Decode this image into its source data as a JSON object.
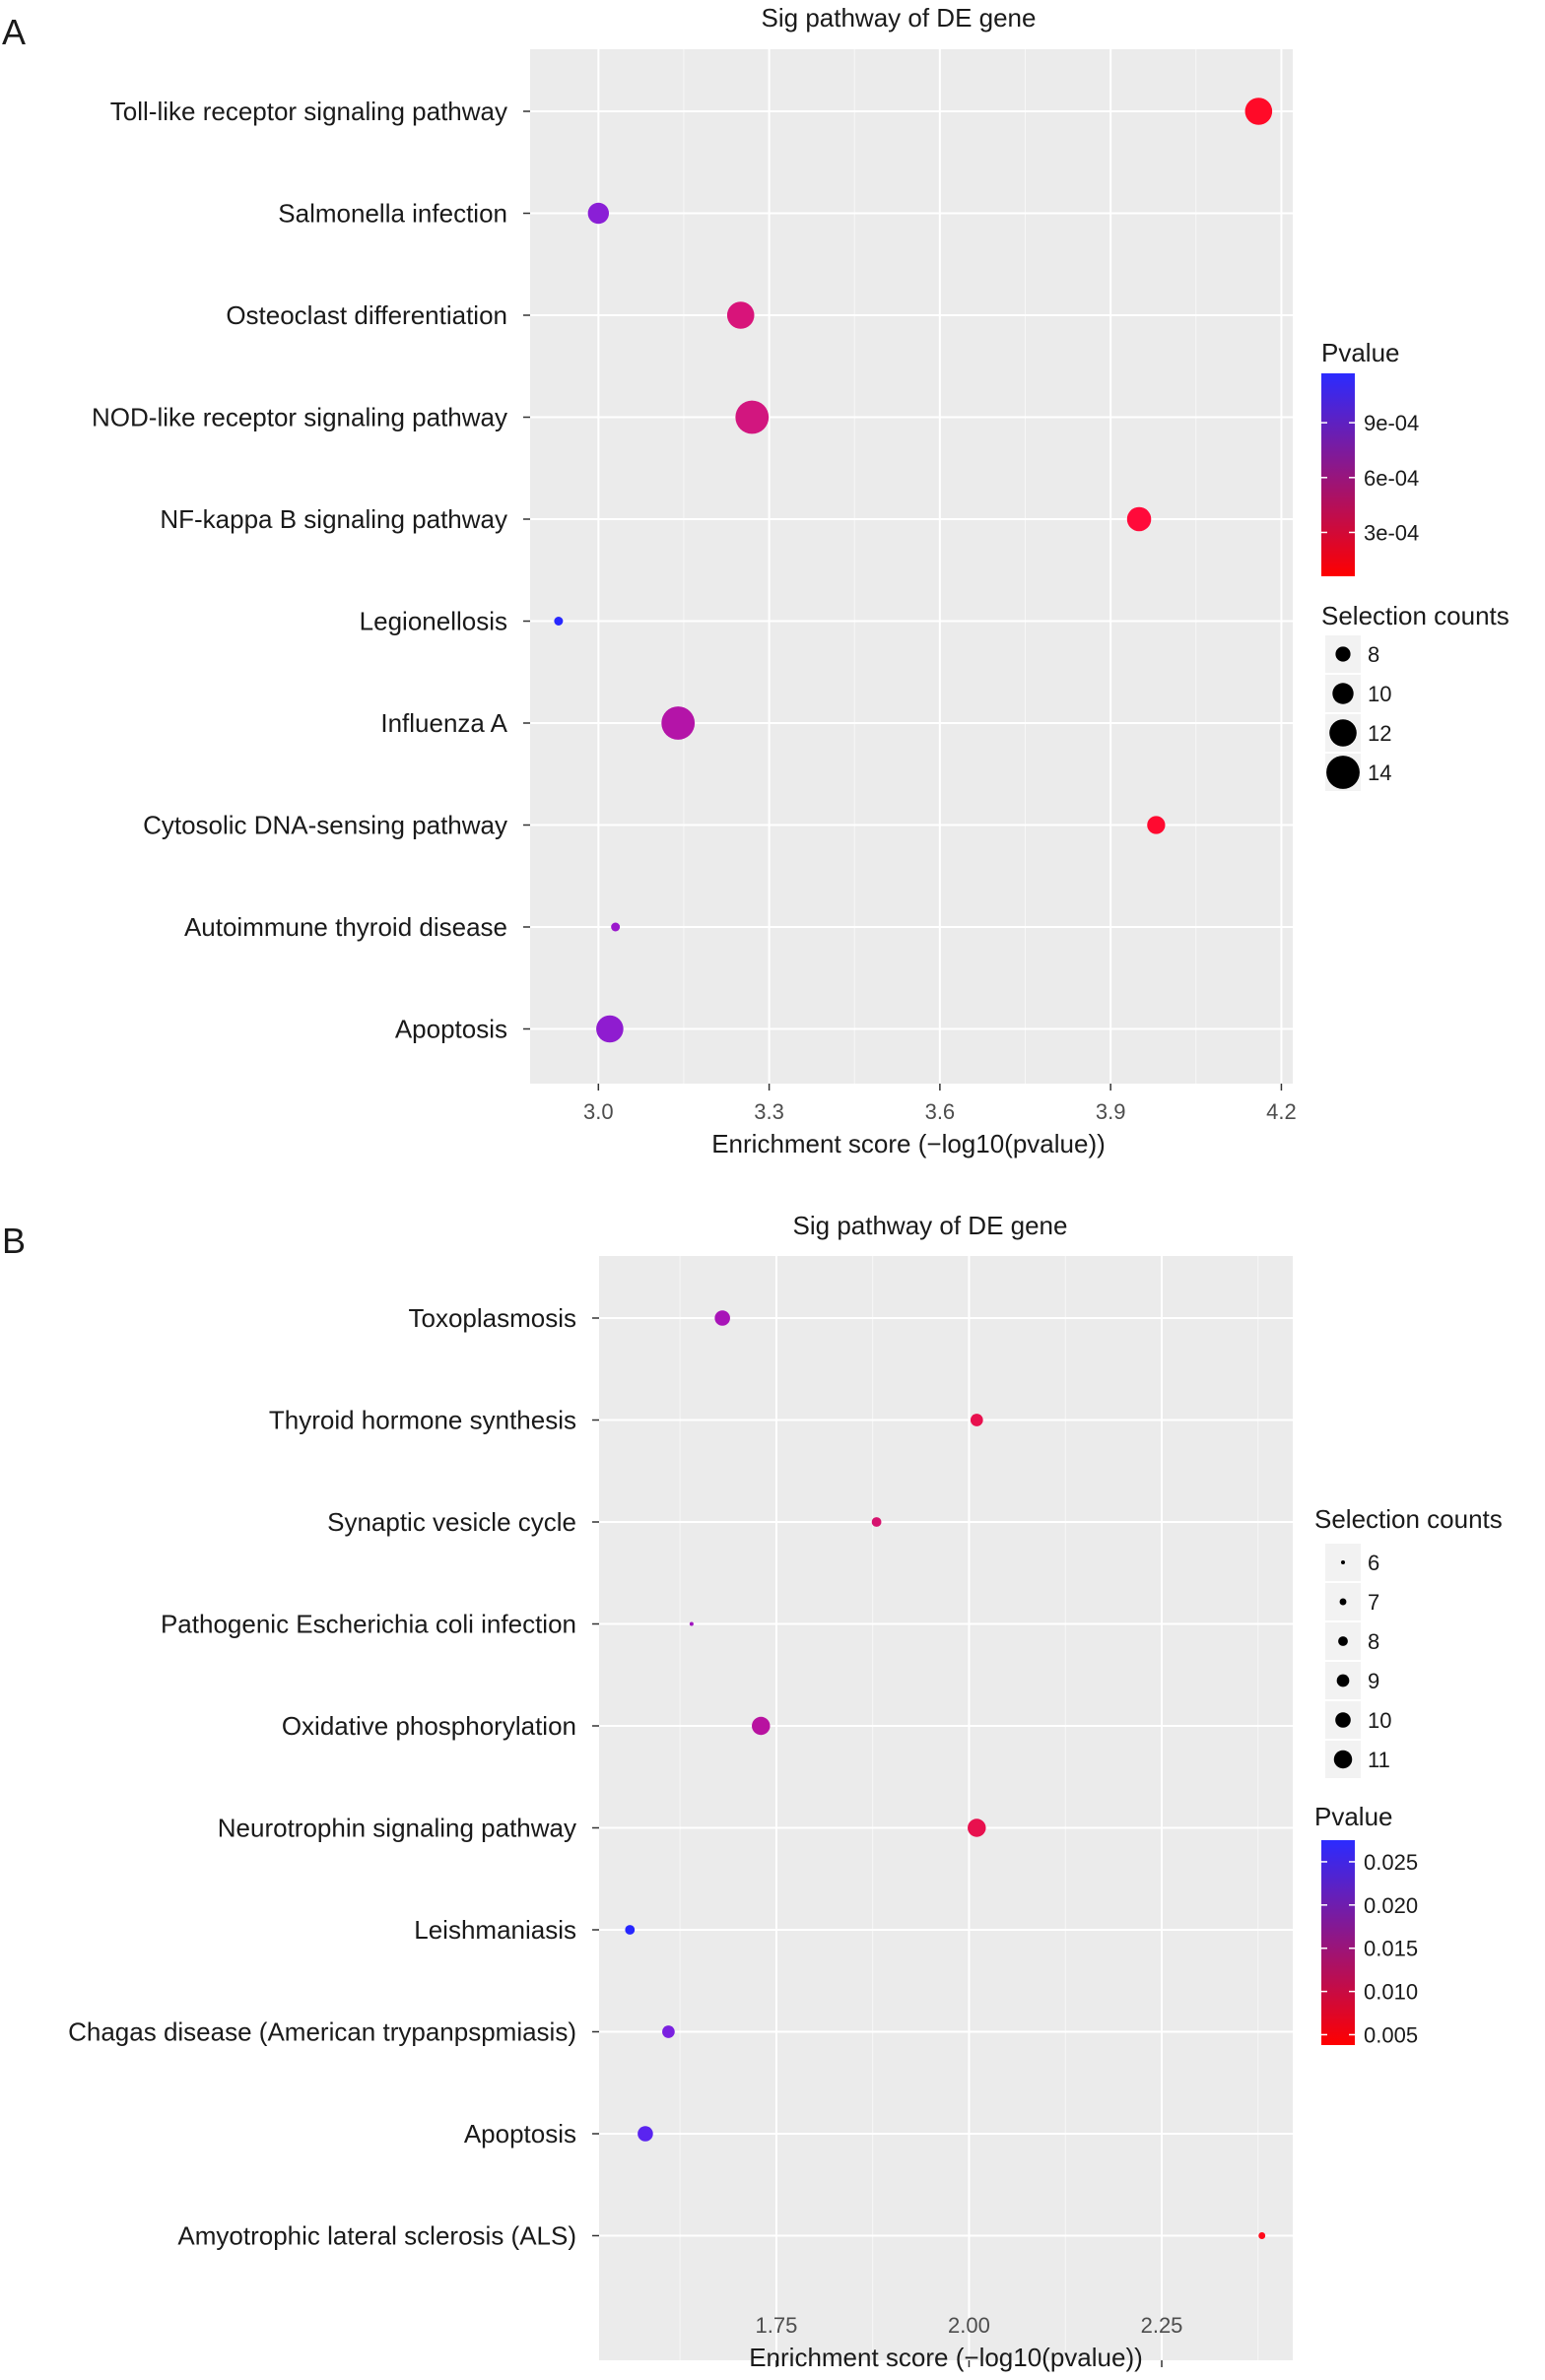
{
  "chart_data": [
    {
      "panel_label": "A",
      "type": "scatter",
      "title": "Sig pathway of DE gene",
      "xlabel": "Enrichment score (−log10(pvalue))",
      "xlim": [
        2.88,
        4.22
      ],
      "x_ticks": [
        3.0,
        3.3,
        3.6,
        3.9,
        4.2
      ],
      "x_tick_labels": [
        "3.0",
        "3.3",
        "3.6",
        "3.9",
        "4.2"
      ],
      "grid": true,
      "legend_position": "right",
      "categories": [
        "Toll-like receptor signaling pathway",
        "Salmonella infection",
        "Osteoclast differentiation",
        "NOD-like receptor signaling pathway",
        "NF-kappa B signaling pathway",
        "Legionellosis",
        "Influenza A",
        "Cytosolic DNA-sensing pathway",
        "Autoimmune thyroid disease",
        "Apoptosis"
      ],
      "points": [
        {
          "category": "Toll-like receptor signaling pathway",
          "x": 4.16,
          "pvalue": 7e-05,
          "count": 12,
          "color": "#ff0a28"
        },
        {
          "category": "Salmonella infection",
          "x": 3.0,
          "pvalue": 0.00099,
          "count": 10,
          "color": "#8a1fd6"
        },
        {
          "category": "Osteoclast differentiation",
          "x": 3.25,
          "pvalue": 0.00056,
          "count": 12,
          "color": "#d8147a"
        },
        {
          "category": "NOD-like receptor signaling pathway",
          "x": 3.27,
          "pvalue": 0.00054,
          "count": 14,
          "color": "#d2167f"
        },
        {
          "category": "NF-kappa B signaling pathway",
          "x": 3.95,
          "pvalue": 0.00011,
          "count": 11,
          "color": "#ff0a3a"
        },
        {
          "category": "Legionellosis",
          "x": 2.93,
          "pvalue": 0.00117,
          "count": 6,
          "color": "#2828ff"
        },
        {
          "category": "Influenza A",
          "x": 3.14,
          "pvalue": 0.00072,
          "count": 14,
          "color": "#b414a8"
        },
        {
          "category": "Cytosolic DNA-sensing pathway",
          "x": 3.98,
          "pvalue": 0.0001,
          "count": 9,
          "color": "#ff0a30"
        },
        {
          "category": "Autoimmune thyroid disease",
          "x": 3.03,
          "pvalue": 0.00093,
          "count": 6,
          "color": "#9a18cc"
        },
        {
          "category": "Apoptosis",
          "x": 3.02,
          "pvalue": 0.00095,
          "count": 12,
          "color": "#8f1cd0"
        }
      ],
      "color_legend": {
        "title": "Pvalue",
        "low_color": "#ff0000",
        "high_color": "#2b2bff",
        "range": [
          6e-05,
          0.00117
        ],
        "ticks": [
          {
            "value": 0.0009,
            "label": "9e-04"
          },
          {
            "value": 0.0006,
            "label": "6e-04"
          },
          {
            "value": 0.0003,
            "label": "3e-04"
          }
        ]
      },
      "size_legend": {
        "title": "Selection counts",
        "items": [
          {
            "value": 8,
            "label": "8"
          },
          {
            "value": 10,
            "label": "10"
          },
          {
            "value": 12,
            "label": "12"
          },
          {
            "value": 14,
            "label": "14"
          }
        ]
      }
    },
    {
      "panel_label": "B",
      "type": "scatter",
      "title": "Sig pathway of DE gene",
      "xlabel": "Enrichment score (−log10(pvalue))",
      "xlim": [
        1.52,
        2.42
      ],
      "x_ticks": [
        1.75,
        2.0,
        2.25
      ],
      "x_tick_labels": [
        "1.75",
        "2.00",
        "2.25"
      ],
      "grid": true,
      "legend_position": "right",
      "categories": [
        "Toxoplasmosis",
        "Thyroid hormone synthesis",
        "Synaptic vesicle cycle",
        "Pathogenic Escherichia coli infection",
        "Oxidative phosphorylation",
        "Neurotrophin signaling pathway",
        "Leishmaniasis",
        "Chagas disease (American trypanpspmiasis)",
        "Apoptosis",
        "Amyotrophic lateral sclerosis (ALS)"
      ],
      "points": [
        {
          "category": "Toxoplasmosis",
          "x": 1.68,
          "pvalue": 0.021,
          "count": 10,
          "color": "#a814b8"
        },
        {
          "category": "Thyroid hormone synthesis",
          "x": 2.01,
          "pvalue": 0.0098,
          "count": 9,
          "color": "#e8104e"
        },
        {
          "category": "Synaptic vesicle cycle",
          "x": 1.88,
          "pvalue": 0.013,
          "count": 8,
          "color": "#d6126e"
        },
        {
          "category": "Pathogenic Escherichia coli infection",
          "x": 1.64,
          "pvalue": 0.023,
          "count": 6,
          "color": "#a015c0"
        },
        {
          "category": "Oxidative phosphorylation",
          "x": 1.73,
          "pvalue": 0.019,
          "count": 11,
          "color": "#b812a0"
        },
        {
          "category": "Neurotrophin signaling pathway",
          "x": 2.01,
          "pvalue": 0.0098,
          "count": 11,
          "color": "#e8104e"
        },
        {
          "category": "Leishmaniasis",
          "x": 1.56,
          "pvalue": 0.027,
          "count": 8,
          "color": "#2626ff"
        },
        {
          "category": "Chagas disease (American trypanpspmiasis)",
          "x": 1.61,
          "pvalue": 0.0245,
          "count": 9,
          "color": "#7a20e0"
        },
        {
          "category": "Apoptosis",
          "x": 1.58,
          "pvalue": 0.026,
          "count": 10,
          "color": "#5a24f0"
        },
        {
          "category": "Amyotrophic lateral sclerosis (ALS)",
          "x": 2.38,
          "pvalue": 0.0042,
          "count": 7,
          "color": "#ff0a1a"
        }
      ],
      "color_legend": {
        "title": "Pvalue",
        "low_color": "#ff0000",
        "high_color": "#2b2bff",
        "range": [
          0.0038,
          0.0275
        ],
        "ticks": [
          {
            "value": 0.025,
            "label": "0.025"
          },
          {
            "value": 0.02,
            "label": "0.020"
          },
          {
            "value": 0.015,
            "label": "0.015"
          },
          {
            "value": 0.01,
            "label": "0.010"
          },
          {
            "value": 0.005,
            "label": "0.005"
          }
        ]
      },
      "size_legend": {
        "title": "Selection counts",
        "items": [
          {
            "value": 6,
            "label": "6"
          },
          {
            "value": 7,
            "label": "7"
          },
          {
            "value": 8,
            "label": "8"
          },
          {
            "value": 9,
            "label": "9"
          },
          {
            "value": 10,
            "label": "10"
          },
          {
            "value": 11,
            "label": "11"
          }
        ]
      }
    }
  ]
}
